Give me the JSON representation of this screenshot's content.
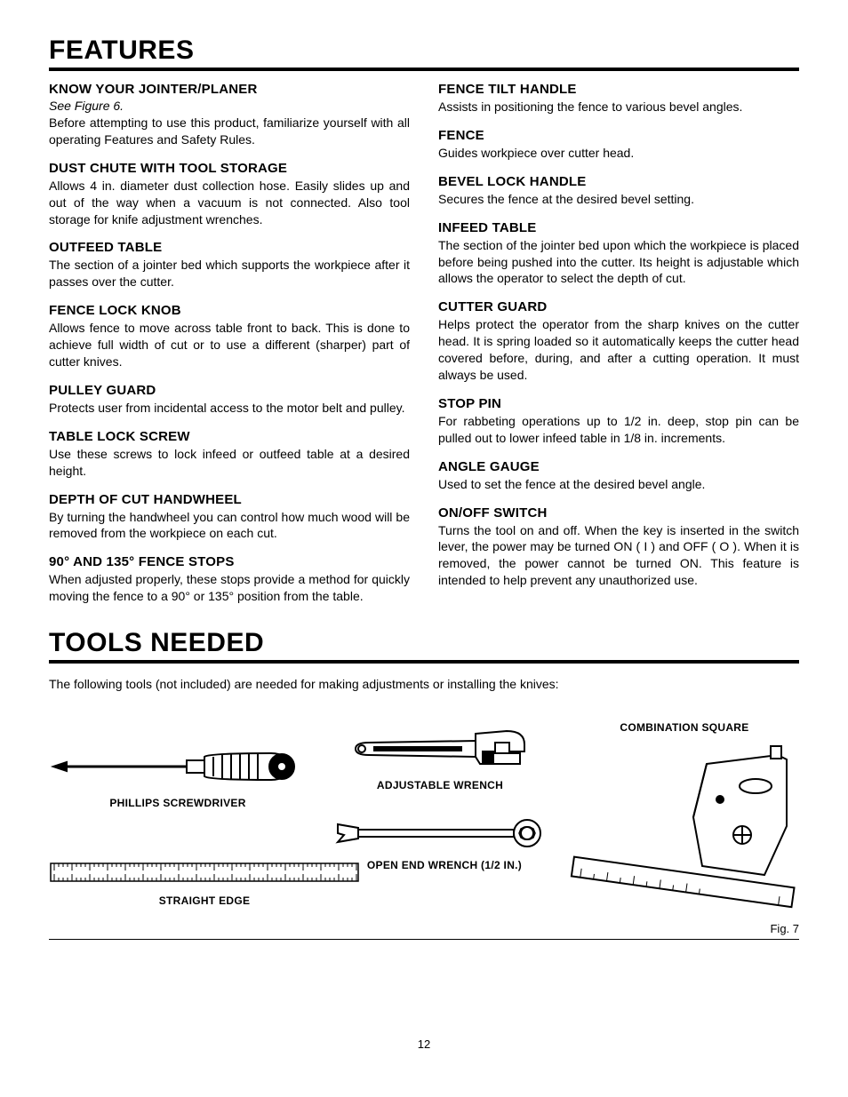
{
  "page": {
    "title_features": "FEATURES",
    "title_tools": "TOOLS NEEDED",
    "tools_intro": "The following tools (not included) are needed for making adjustments or installing the knives:",
    "fig_label": "Fig. 7",
    "page_number": "12"
  },
  "left_sections": [
    {
      "heading": "KNOW YOUR JOINTER/PLANER",
      "note": "See Figure 6.",
      "body": "Before attempting to use this product, familiarize yourself with all operating Features and Safety Rules."
    },
    {
      "heading": "DUST CHUTE WITH TOOL STORAGE",
      "body": "Allows 4 in. diameter dust collection hose. Easily slides up and out of the way when a vacuum is not connected. Also tool storage for knife adjustment wrenches."
    },
    {
      "heading": "OUTFEED TABLE",
      "body": "The section of a jointer bed which supports the workpiece after it passes over the cutter."
    },
    {
      "heading": "FENCE LOCK KNOB",
      "body": "Allows fence to move across table front to back. This is done to achieve full width of cut or to use a different (sharper) part of cutter knives."
    },
    {
      "heading": "PULLEY GUARD",
      "body": "Protects user from incidental access to the motor belt and pulley."
    },
    {
      "heading": "TABLE LOCK SCREW",
      "body": "Use these screws to lock infeed or outfeed table at a desired height."
    },
    {
      "heading": "DEPTH OF CUT HANDWHEEL",
      "body": "By turning the handwheel you can control how much wood will be removed from the workpiece on each cut."
    },
    {
      "heading": "90° AND 135° FENCE STOPS",
      "body": "When adjusted properly, these stops provide a method for quickly moving the fence to a 90° or 135° position from the table."
    }
  ],
  "right_sections": [
    {
      "heading": "FENCE TILT HANDLE",
      "body": "Assists in positioning the fence to various bevel angles."
    },
    {
      "heading": "FENCE",
      "body": "Guides workpiece over cutter head."
    },
    {
      "heading": "BEVEL LOCK HANDLE",
      "body": "Secures the fence at the desired bevel setting."
    },
    {
      "heading": "INFEED TABLE",
      "body": "The section of the jointer bed upon which the workpiece is placed before being pushed into the cutter. Its height is adjustable which allows the operator to select the depth of cut."
    },
    {
      "heading": "CUTTER GUARD",
      "body": "Helps protect the operator from the sharp knives on the cutter head. It is spring loaded so it automatically keeps the cutter head covered before, during, and after a cutting operation. It must always be used."
    },
    {
      "heading": "STOP PIN",
      "body": "For rabbeting operations up to 1/2 in. deep, stop pin can be pulled out to lower infeed table in 1/8 in. increments."
    },
    {
      "heading": "ANGLE GAUGE",
      "body": "Used to set the fence at the desired bevel angle."
    },
    {
      "heading": "ON/OFF SWITCH",
      "body": "Turns the tool on and off. When the key is inserted in the switch lever, the power may be turned ON ( I ) and OFF ( O ). When it is removed, the power cannot be turned ON. This feature is intended to help prevent any unauthorized use."
    }
  ],
  "tools": {
    "phillips": "PHILLIPS SCREWDRIVER",
    "adjustable": "ADJUSTABLE WRENCH",
    "openend": "OPEN END WRENCH (1/2 IN.)",
    "combination": "COMBINATION SQUARE",
    "straightedge": "STRAIGHT EDGE"
  }
}
